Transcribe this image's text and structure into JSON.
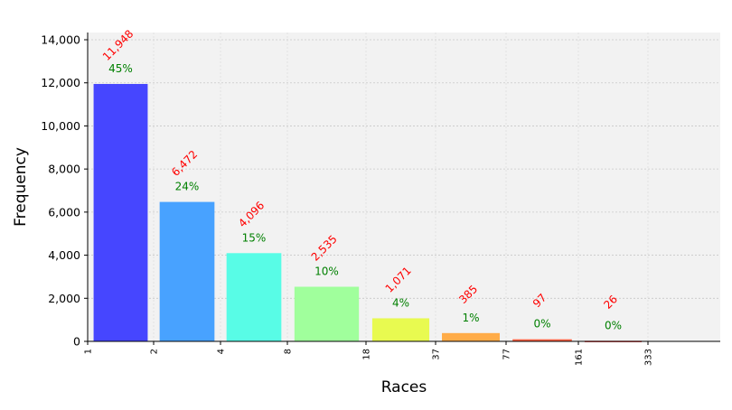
{
  "chart_data": {
    "type": "bar",
    "xlabel": "Races",
    "ylabel": "Frequency",
    "ylim": [
      0,
      14336
    ],
    "y_ticks": [
      0,
      2000,
      4000,
      6000,
      8000,
      10000,
      12000,
      14000
    ],
    "y_tick_labels": [
      "0",
      "2,000",
      "4,000",
      "6,000",
      "8,000",
      "10,000",
      "12,000",
      "14,000"
    ],
    "x_ticks": [
      1,
      2,
      4,
      8,
      18,
      37,
      77,
      161,
      333
    ],
    "x_tick_labels": [
      "1",
      "2",
      "4",
      "8",
      "18",
      "37",
      "77",
      "161",
      "333"
    ],
    "grid": true,
    "background": "#f2f2f2",
    "bars": [
      {
        "x_start": 1,
        "x_end": 2,
        "value": 11948,
        "count_label": "11,948",
        "pct_label": "45%",
        "color": "#4646ff"
      },
      {
        "x_start": 2,
        "x_end": 4,
        "value": 6472,
        "count_label": "6,472",
        "pct_label": "24%",
        "color": "#48a2ff"
      },
      {
        "x_start": 4,
        "x_end": 8,
        "value": 4096,
        "count_label": "4,096",
        "pct_label": "15%",
        "color": "#58fce6"
      },
      {
        "x_start": 8,
        "x_end": 18,
        "value": 2535,
        "count_label": "2,535",
        "pct_label": "10%",
        "color": "#a0ff9c"
      },
      {
        "x_start": 18,
        "x_end": 37,
        "value": 1071,
        "count_label": "1,071",
        "pct_label": "4%",
        "color": "#e8fa50"
      },
      {
        "x_start": 37,
        "x_end": 77,
        "value": 385,
        "count_label": "385",
        "pct_label": "1%",
        "color": "#ffac48"
      },
      {
        "x_start": 77,
        "x_end": 161,
        "value": 97,
        "count_label": "97",
        "pct_label": "0%",
        "color": "#ff6244"
      },
      {
        "x_start": 161,
        "x_end": 333,
        "value": 26,
        "count_label": "26",
        "pct_label": "0%",
        "color": "#e02828"
      }
    ],
    "count_label_color": "#ff0000",
    "pct_label_color": "#008000"
  }
}
